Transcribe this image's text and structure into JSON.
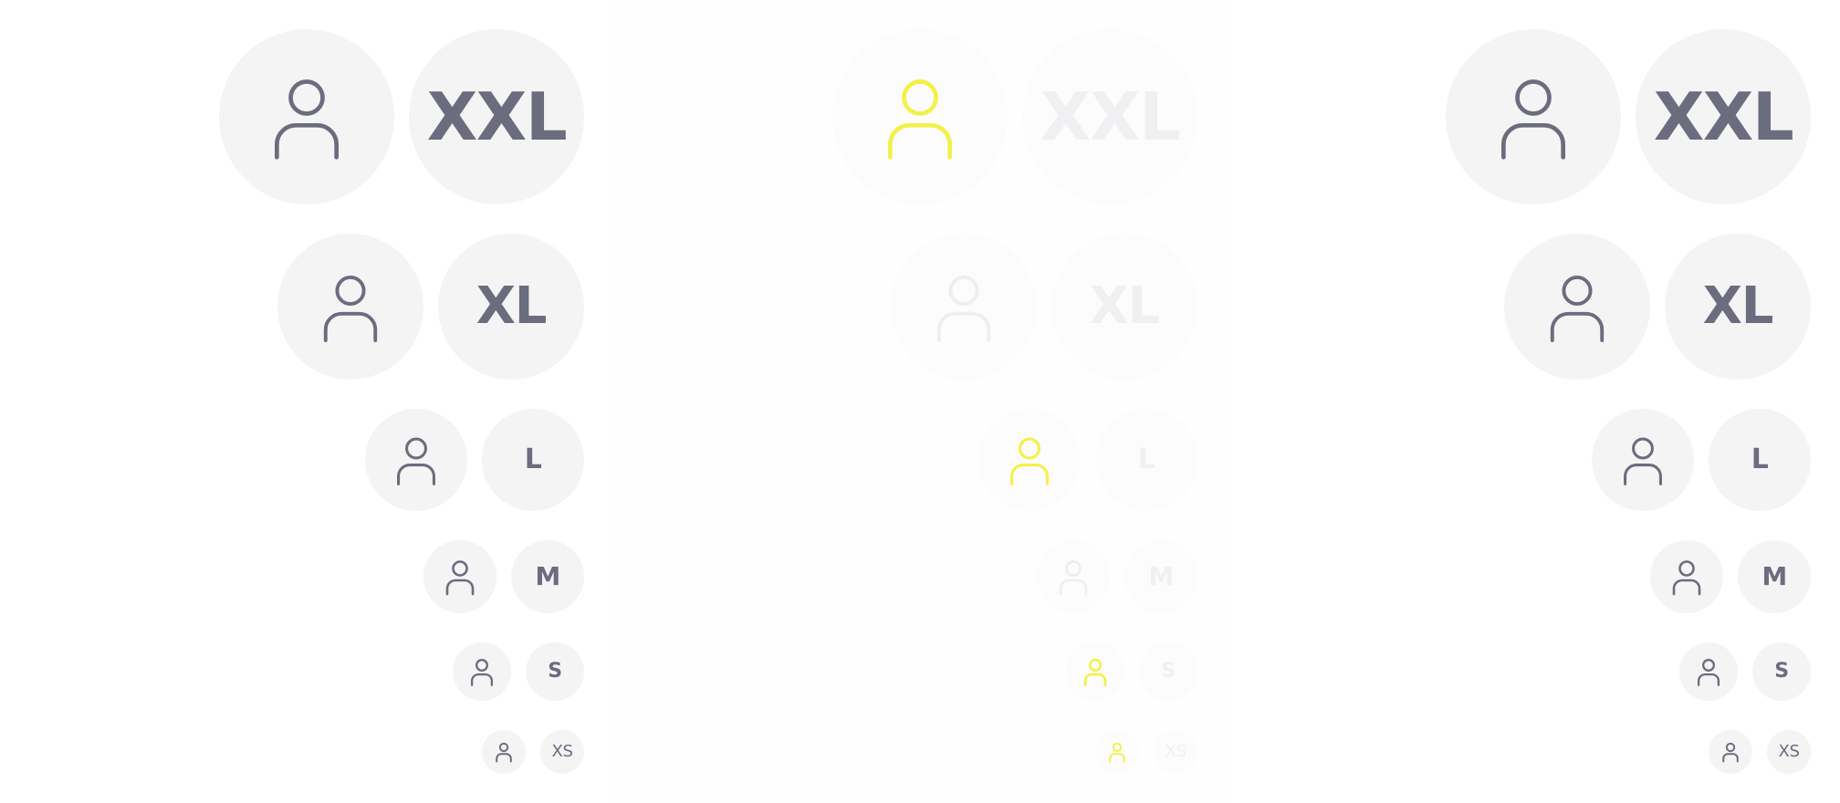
{
  "panels": [
    {
      "id": "left",
      "state": "default",
      "sizes": [
        {
          "size": "XXL",
          "initials": "XXL",
          "icon": "user-icon"
        },
        {
          "size": "XL",
          "initials": "XL",
          "icon": "user-icon"
        },
        {
          "size": "L",
          "initials": "L",
          "icon": "user-icon"
        },
        {
          "size": "M",
          "initials": "M",
          "icon": "user-icon"
        },
        {
          "size": "S",
          "initials": "S",
          "icon": "user-icon"
        },
        {
          "size": "XS",
          "initials": "XS",
          "icon": "user-icon"
        }
      ]
    },
    {
      "id": "middle",
      "state": "faded",
      "highlight_color": "#f4f04a",
      "sizes": [
        {
          "size": "XXL",
          "initials": "XXL",
          "icon": "user-icon"
        },
        {
          "size": "XL",
          "initials": "XL",
          "icon": "user-icon"
        },
        {
          "size": "L",
          "initials": "L",
          "icon": "user-icon"
        },
        {
          "size": "M",
          "initials": "M",
          "icon": "user-icon"
        },
        {
          "size": "S",
          "initials": "S",
          "icon": "user-icon"
        },
        {
          "size": "XS",
          "initials": "XS",
          "icon": "user-icon"
        }
      ]
    },
    {
      "id": "right",
      "state": "default",
      "sizes": [
        {
          "size": "XXL",
          "initials": "XXL",
          "icon": "user-icon"
        },
        {
          "size": "XL",
          "initials": "XL",
          "icon": "user-icon"
        },
        {
          "size": "L",
          "initials": "L",
          "icon": "user-icon"
        },
        {
          "size": "M",
          "initials": "M",
          "icon": "user-icon"
        },
        {
          "size": "S",
          "initials": "S",
          "icon": "user-icon"
        },
        {
          "size": "XS",
          "initials": "XS",
          "icon": "user-icon"
        }
      ]
    }
  ],
  "colors": {
    "avatar_background": "#f4f4f5",
    "avatar_foreground": "#6b6c7e"
  }
}
